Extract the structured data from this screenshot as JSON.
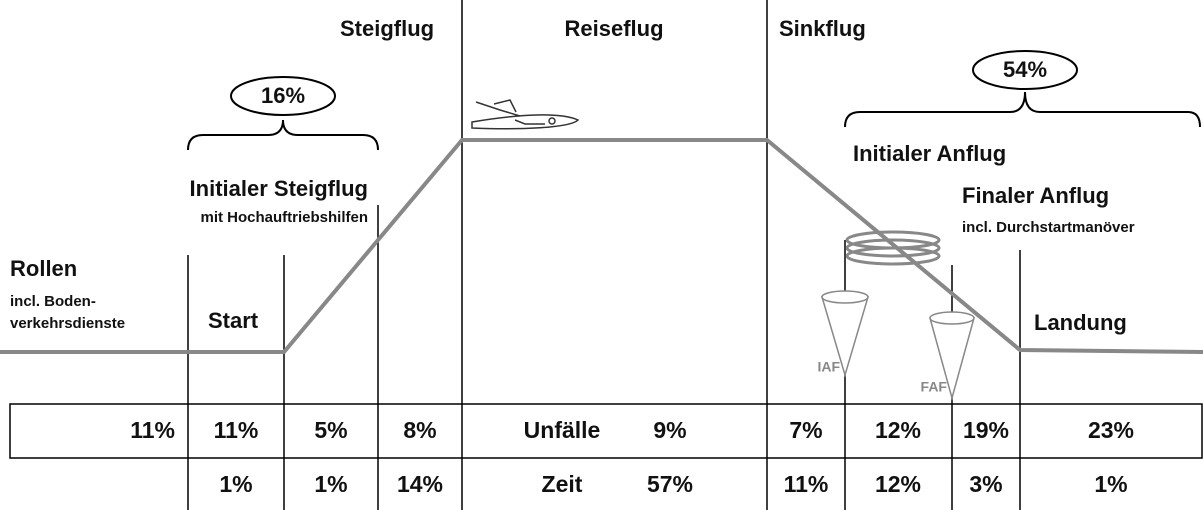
{
  "phases": {
    "climb": "Steigflug",
    "cruise": "Reiseflug",
    "descent": "Sinkflug"
  },
  "groups": {
    "departure": "16%",
    "arrival": "54%"
  },
  "segments": {
    "taxi": {
      "title": "Rollen",
      "note1": "incl. Boden-",
      "note2": "verkehrsdienste"
    },
    "takeoff": {
      "title": "Start"
    },
    "initial_climb": {
      "title": "Initialer Steigflug",
      "note": "mit Hochauftriebshilfen"
    },
    "initial_approach": {
      "title": "Initialer Anflug"
    },
    "final_approach": {
      "title": "Finaler Anflug",
      "note": "incl. Durchstartmanöver"
    },
    "landing": {
      "title": "Landung"
    }
  },
  "fixes": {
    "iaf": "IAF",
    "faf": "FAF"
  },
  "table": {
    "rows": [
      {
        "label": "Unfälle",
        "values": [
          "11%",
          "11%",
          "5%",
          "8%",
          "9%",
          "7%",
          "12%",
          "19%",
          "23%"
        ]
      },
      {
        "label": "Zeit",
        "values": [
          "1%",
          "1%",
          "14%",
          "57%",
          "11%",
          "12%",
          "3%",
          "1%"
        ]
      }
    ]
  }
}
